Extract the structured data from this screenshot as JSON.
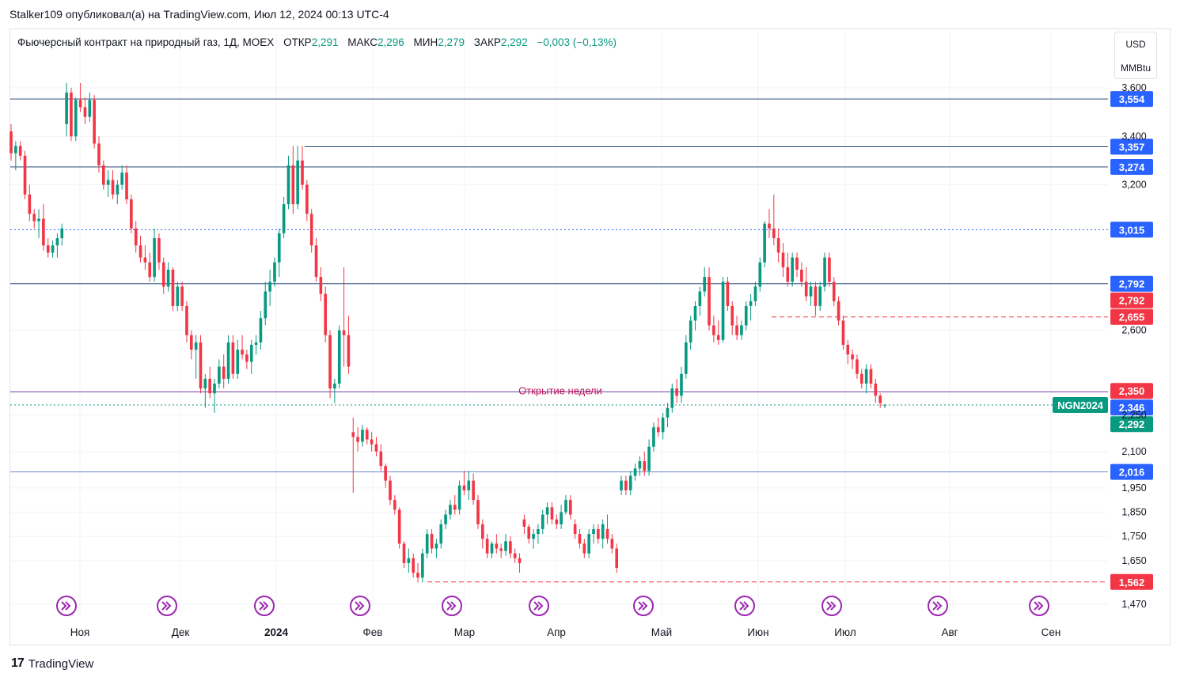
{
  "header": {
    "text": "Stalker109 опубликовал(а) на TradingView.com, Июл 12, 2024 00:13 UTC-4"
  },
  "legend": {
    "title": "Фьючерсный контракт на природный газ, 1Д, MOEX",
    "open_label": "ОТКР",
    "open": "2,291",
    "high_label": "МАКС",
    "high": "2,296",
    "low_label": "МИН",
    "low": "2,279",
    "close_label": "ЗАКР",
    "close": "2,292",
    "change": "−0,003 (−0,13%)"
  },
  "unit_selector": {
    "line1": "USD",
    "line2": "MMBtu"
  },
  "footer": {
    "brand": "TradingView"
  },
  "chart_data": {
    "type": "candlestick",
    "symbol_tag": "NGN2024",
    "ylim": [
      1.42,
      3.7
    ],
    "y_ticks": [
      "3,600",
      "3,400",
      "3,200",
      "2,600",
      "2,250",
      "2,100",
      "1,950",
      "1,850",
      "1,750",
      "1,650",
      "1,470"
    ],
    "y_tick_values": [
      3.6,
      3.4,
      3.2,
      2.6,
      2.25,
      2.1,
      1.95,
      1.85,
      1.75,
      1.65,
      1.47
    ],
    "x_labels": [
      "Ноя",
      "Дек",
      "2024",
      "Фев",
      "Мар",
      "Апр",
      "Май",
      "Июн",
      "Июл",
      "Авг",
      "Сен"
    ],
    "x_label_bold": "2024",
    "annotation": "Открытие недели",
    "horizontal_levels": [
      {
        "value": 3.554,
        "label": "3,554",
        "color": "#2962ff",
        "style": "solid",
        "line": "#2a4a7a"
      },
      {
        "value": 3.357,
        "label": "3,357",
        "color": "#2962ff",
        "style": "solid",
        "line": "#2a4a7a"
      },
      {
        "value": 3.274,
        "label": "3,274",
        "color": "#2962ff",
        "style": "solid",
        "line": "#2a4a7a"
      },
      {
        "value": 3.015,
        "label": "3,015",
        "color": "#2962ff",
        "style": "dotted",
        "line": "#2962ff"
      },
      {
        "value": 2.792,
        "label": "2,792",
        "color": "#2962ff",
        "style": "none",
        "line": "#2a4a7a"
      },
      {
        "value": 2.792,
        "label": "2,792",
        "color": "#f23645",
        "style": "solid",
        "line": "#2a4a7a"
      },
      {
        "value": 2.655,
        "label": "2,655",
        "color": "#f23645",
        "style": "dashed",
        "line": "#f23645"
      },
      {
        "value": 2.35,
        "label": "2,350",
        "color": "#f23645",
        "style": "none",
        "line": "#f23645"
      },
      {
        "value": 2.346,
        "label": "2,346",
        "color": "#2962ff",
        "style": "solid",
        "line": "#7b3fa8"
      },
      {
        "value": 2.292,
        "label": "2,292",
        "color": "#089981",
        "style": "dotted",
        "line": "#089981"
      },
      {
        "value": 2.016,
        "label": "2,016",
        "color": "#2962ff",
        "style": "solid",
        "line": "#6a8fc7"
      },
      {
        "value": 1.562,
        "label": "1,562",
        "color": "#f23645",
        "style": "dashed",
        "line": "#f23645"
      }
    ],
    "colors": {
      "up": "#089981",
      "down": "#f23645",
      "grid": "#f0f3fa",
      "text": "#131722",
      "event_icon": "#9c27b0"
    },
    "candles": [
      [
        3.42,
        3.45,
        3.3,
        3.33
      ],
      [
        3.33,
        3.38,
        3.26,
        3.36
      ],
      [
        3.36,
        3.38,
        3.3,
        3.32
      ],
      [
        3.32,
        3.34,
        3.14,
        3.16
      ],
      [
        3.16,
        3.2,
        3.05,
        3.08
      ],
      [
        3.08,
        3.1,
        3.02,
        3.05
      ],
      [
        3.05,
        3.1,
        2.98,
        3.06
      ],
      [
        3.06,
        3.12,
        2.93,
        2.95
      ],
      [
        2.95,
        2.98,
        2.9,
        2.92
      ],
      [
        2.92,
        2.97,
        2.9,
        2.95
      ],
      [
        2.95,
        3.0,
        2.9,
        2.98
      ],
      [
        2.98,
        3.04,
        2.95,
        3.02
      ],
      [
        3.45,
        3.62,
        3.4,
        3.58
      ],
      [
        3.58,
        3.6,
        3.38,
        3.4
      ],
      [
        3.4,
        3.56,
        3.38,
        3.55
      ],
      [
        3.55,
        3.62,
        3.5,
        3.52
      ],
      [
        3.52,
        3.56,
        3.45,
        3.48
      ],
      [
        3.48,
        3.58,
        3.46,
        3.55
      ],
      [
        3.55,
        3.57,
        3.35,
        3.37
      ],
      [
        3.37,
        3.4,
        3.25,
        3.28
      ],
      [
        3.28,
        3.3,
        3.18,
        3.2
      ],
      [
        3.2,
        3.26,
        3.15,
        3.22
      ],
      [
        3.22,
        3.26,
        3.14,
        3.16
      ],
      [
        3.16,
        3.22,
        3.12,
        3.2
      ],
      [
        3.2,
        3.28,
        3.18,
        3.25
      ],
      [
        3.25,
        3.28,
        3.12,
        3.14
      ],
      [
        3.14,
        3.16,
        3.0,
        3.02
      ],
      [
        3.02,
        3.05,
        2.92,
        2.95
      ],
      [
        2.95,
        2.99,
        2.88,
        2.9
      ],
      [
        2.9,
        2.95,
        2.85,
        2.88
      ],
      [
        2.88,
        2.92,
        2.8,
        2.82
      ],
      [
        2.82,
        3.02,
        2.8,
        2.98
      ],
      [
        2.98,
        3.0,
        2.85,
        2.88
      ],
      [
        2.88,
        2.9,
        2.75,
        2.78
      ],
      [
        2.78,
        2.88,
        2.76,
        2.85
      ],
      [
        2.85,
        2.86,
        2.68,
        2.7
      ],
      [
        2.7,
        2.8,
        2.68,
        2.78
      ],
      [
        2.78,
        2.8,
        2.68,
        2.7
      ],
      [
        2.7,
        2.72,
        2.55,
        2.58
      ],
      [
        2.58,
        2.6,
        2.48,
        2.52
      ],
      [
        2.52,
        2.58,
        2.4,
        2.55
      ],
      [
        2.55,
        2.58,
        2.34,
        2.36
      ],
      [
        2.36,
        2.42,
        2.28,
        2.4
      ],
      [
        2.4,
        2.45,
        2.32,
        2.34
      ],
      [
        2.34,
        2.4,
        2.26,
        2.38
      ],
      [
        2.38,
        2.48,
        2.36,
        2.45
      ],
      [
        2.45,
        2.5,
        2.36,
        2.4
      ],
      [
        2.4,
        2.58,
        2.38,
        2.55
      ],
      [
        2.55,
        2.58,
        2.4,
        2.42
      ],
      [
        2.42,
        2.56,
        2.4,
        2.52
      ],
      [
        2.52,
        2.58,
        2.48,
        2.5
      ],
      [
        2.5,
        2.52,
        2.44,
        2.47
      ],
      [
        2.47,
        2.56,
        2.42,
        2.54
      ],
      [
        2.54,
        2.58,
        2.5,
        2.55
      ],
      [
        2.55,
        2.68,
        2.52,
        2.65
      ],
      [
        2.65,
        2.8,
        2.62,
        2.76
      ],
      [
        2.76,
        2.85,
        2.7,
        2.8
      ],
      [
        2.8,
        2.9,
        2.78,
        2.88
      ],
      [
        2.88,
        3.02,
        2.82,
        3.0
      ],
      [
        3.0,
        3.15,
        2.98,
        3.12
      ],
      [
        3.12,
        3.32,
        3.1,
        3.28
      ],
      [
        3.28,
        3.36,
        3.08,
        3.12
      ],
      [
        3.12,
        3.36,
        3.1,
        3.3
      ],
      [
        3.3,
        3.36,
        3.18,
        3.2
      ],
      [
        3.2,
        3.22,
        3.05,
        3.08
      ],
      [
        3.08,
        3.1,
        2.92,
        2.95
      ],
      [
        2.95,
        2.98,
        2.8,
        2.82
      ],
      [
        2.82,
        2.86,
        2.72,
        2.75
      ],
      [
        2.75,
        2.78,
        2.55,
        2.58
      ],
      [
        2.58,
        2.6,
        2.32,
        2.36
      ],
      [
        2.36,
        2.4,
        2.3,
        2.38
      ],
      [
        2.38,
        2.62,
        2.36,
        2.6
      ],
      [
        2.6,
        2.86,
        2.45,
        2.58
      ],
      [
        2.58,
        2.66,
        2.42,
        2.45
      ],
      [
        2.18,
        2.24,
        1.93,
        2.16
      ],
      [
        2.16,
        2.2,
        2.1,
        2.14
      ],
      [
        2.14,
        2.21,
        2.12,
        2.19
      ],
      [
        2.19,
        2.2,
        2.13,
        2.15
      ],
      [
        2.15,
        2.18,
        2.1,
        2.13
      ],
      [
        2.13,
        2.16,
        2.08,
        2.1
      ],
      [
        2.1,
        2.13,
        2.02,
        2.04
      ],
      [
        2.04,
        2.05,
        1.95,
        1.98
      ],
      [
        1.98,
        2.0,
        1.88,
        1.9
      ],
      [
        1.9,
        1.92,
        1.84,
        1.86
      ],
      [
        1.86,
        1.87,
        1.7,
        1.72
      ],
      [
        1.72,
        1.73,
        1.62,
        1.64
      ],
      [
        1.64,
        1.7,
        1.6,
        1.66
      ],
      [
        1.66,
        1.68,
        1.58,
        1.6
      ],
      [
        1.6,
        1.64,
        1.56,
        1.58
      ],
      [
        1.58,
        1.7,
        1.56,
        1.68
      ],
      [
        1.68,
        1.78,
        1.66,
        1.76
      ],
      [
        1.76,
        1.78,
        1.68,
        1.7
      ],
      [
        1.7,
        1.74,
        1.66,
        1.72
      ],
      [
        1.72,
        1.82,
        1.7,
        1.8
      ],
      [
        1.8,
        1.86,
        1.78,
        1.84
      ],
      [
        1.84,
        1.9,
        1.82,
        1.88
      ],
      [
        1.88,
        1.92,
        1.84,
        1.86
      ],
      [
        1.86,
        1.98,
        1.84,
        1.96
      ],
      [
        1.96,
        2.02,
        1.92,
        1.94
      ],
      [
        1.94,
        2.02,
        1.9,
        1.98
      ],
      [
        1.98,
        2.01,
        1.88,
        1.9
      ],
      [
        1.9,
        1.92,
        1.78,
        1.8
      ],
      [
        1.8,
        1.82,
        1.7,
        1.74
      ],
      [
        1.74,
        1.76,
        1.66,
        1.68
      ],
      [
        1.68,
        1.73,
        1.66,
        1.72
      ],
      [
        1.72,
        1.76,
        1.68,
        1.7
      ],
      [
        1.7,
        1.72,
        1.66,
        1.69
      ],
      [
        1.69,
        1.76,
        1.67,
        1.73
      ],
      [
        1.73,
        1.75,
        1.66,
        1.68
      ],
      [
        1.68,
        1.7,
        1.64,
        1.66
      ],
      [
        1.66,
        1.68,
        1.6,
        1.64
      ],
      [
        1.82,
        1.84,
        1.76,
        1.79
      ],
      [
        1.79,
        1.8,
        1.72,
        1.74
      ],
      [
        1.74,
        1.78,
        1.7,
        1.76
      ],
      [
        1.76,
        1.8,
        1.72,
        1.78
      ],
      [
        1.78,
        1.86,
        1.76,
        1.84
      ],
      [
        1.84,
        1.89,
        1.8,
        1.87
      ],
      [
        1.87,
        1.89,
        1.8,
        1.82
      ],
      [
        1.82,
        1.84,
        1.78,
        1.8
      ],
      [
        1.8,
        1.88,
        1.78,
        1.85
      ],
      [
        1.85,
        1.92,
        1.84,
        1.9
      ],
      [
        1.9,
        1.92,
        1.82,
        1.84
      ],
      [
        1.8,
        1.82,
        1.74,
        1.76
      ],
      [
        1.76,
        1.78,
        1.7,
        1.72
      ],
      [
        1.72,
        1.74,
        1.66,
        1.68
      ],
      [
        1.68,
        1.78,
        1.66,
        1.76
      ],
      [
        1.76,
        1.8,
        1.72,
        1.78
      ],
      [
        1.78,
        1.8,
        1.72,
        1.74
      ],
      [
        1.74,
        1.82,
        1.7,
        1.8
      ],
      [
        1.78,
        1.84,
        1.72,
        1.74
      ],
      [
        1.74,
        1.76,
        1.68,
        1.7
      ],
      [
        1.7,
        1.72,
        1.6,
        1.62
      ],
      [
        1.94,
        2.0,
        1.92,
        1.98
      ],
      [
        1.98,
        2.0,
        1.92,
        1.94
      ],
      [
        1.94,
        2.02,
        1.92,
        2.0
      ],
      [
        2.0,
        2.05,
        1.98,
        2.03
      ],
      [
        2.03,
        2.08,
        2.0,
        2.06
      ],
      [
        2.06,
        2.1,
        2.0,
        2.02
      ],
      [
        2.02,
        2.15,
        2.0,
        2.12
      ],
      [
        2.12,
        2.22,
        2.1,
        2.2
      ],
      [
        2.2,
        2.24,
        2.16,
        2.18
      ],
      [
        2.18,
        2.26,
        2.15,
        2.24
      ],
      [
        2.24,
        2.3,
        2.2,
        2.28
      ],
      [
        2.28,
        2.38,
        2.26,
        2.36
      ],
      [
        2.36,
        2.4,
        2.3,
        2.33
      ],
      [
        2.33,
        2.45,
        2.3,
        2.42
      ],
      [
        2.42,
        2.58,
        2.4,
        2.55
      ],
      [
        2.55,
        2.66,
        2.52,
        2.64
      ],
      [
        2.64,
        2.72,
        2.6,
        2.7
      ],
      [
        2.7,
        2.78,
        2.66,
        2.76
      ],
      [
        2.76,
        2.86,
        2.74,
        2.82
      ],
      [
        2.82,
        2.86,
        2.6,
        2.62
      ],
      [
        2.62,
        2.66,
        2.55,
        2.58
      ],
      [
        2.58,
        2.64,
        2.54,
        2.56
      ],
      [
        2.56,
        2.82,
        2.55,
        2.8
      ],
      [
        2.8,
        2.82,
        2.68,
        2.7
      ],
      [
        2.7,
        2.72,
        2.58,
        2.62
      ],
      [
        2.62,
        2.66,
        2.56,
        2.58
      ],
      [
        2.58,
        2.64,
        2.56,
        2.62
      ],
      [
        2.62,
        2.72,
        2.6,
        2.7
      ],
      [
        2.7,
        2.75,
        2.64,
        2.72
      ],
      [
        2.72,
        2.8,
        2.7,
        2.78
      ],
      [
        2.78,
        2.9,
        2.76,
        2.88
      ],
      [
        2.88,
        3.05,
        2.86,
        3.04
      ],
      [
        3.04,
        3.1,
        2.98,
        3.02
      ],
      [
        3.02,
        3.16,
        2.95,
        2.98
      ],
      [
        2.98,
        3.02,
        2.88,
        2.92
      ],
      [
        2.92,
        2.96,
        2.82,
        2.86
      ],
      [
        2.86,
        2.92,
        2.78,
        2.8
      ],
      [
        2.8,
        2.92,
        2.78,
        2.9
      ],
      [
        2.9,
        2.92,
        2.82,
        2.85
      ],
      [
        2.85,
        2.88,
        2.78,
        2.8
      ],
      [
        2.8,
        2.86,
        2.72,
        2.74
      ],
      [
        2.74,
        2.8,
        2.7,
        2.78
      ],
      [
        2.78,
        2.8,
        2.66,
        2.7
      ],
      [
        2.7,
        2.8,
        2.68,
        2.78
      ],
      [
        2.78,
        2.92,
        2.76,
        2.9
      ],
      [
        2.9,
        2.92,
        2.78,
        2.8
      ],
      [
        2.8,
        2.82,
        2.7,
        2.72
      ],
      [
        2.72,
        2.74,
        2.62,
        2.64
      ],
      [
        2.64,
        2.66,
        2.52,
        2.54
      ],
      [
        2.54,
        2.56,
        2.46,
        2.5
      ],
      [
        2.5,
        2.52,
        2.44,
        2.48
      ],
      [
        2.48,
        2.5,
        2.4,
        2.42
      ],
      [
        2.42,
        2.44,
        2.36,
        2.38
      ],
      [
        2.38,
        2.46,
        2.34,
        2.44
      ],
      [
        2.44,
        2.46,
        2.36,
        2.38
      ],
      [
        2.38,
        2.4,
        2.3,
        2.33
      ],
      [
        2.33,
        2.34,
        2.28,
        2.3
      ],
      [
        2.291,
        2.296,
        2.279,
        2.292
      ]
    ]
  }
}
